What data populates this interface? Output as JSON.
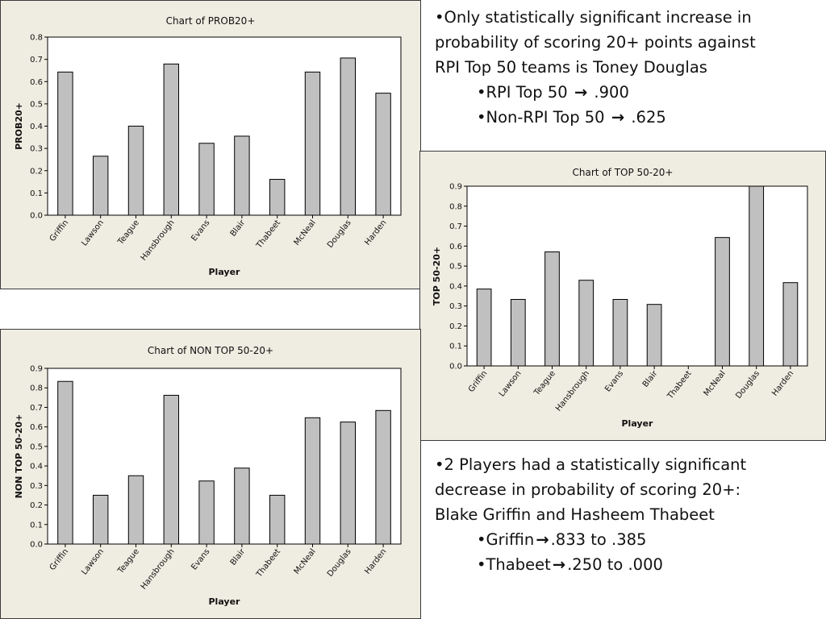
{
  "chart_data": [
    {
      "type": "bar",
      "title": "Chart of PROB20+",
      "xlabel": "Player",
      "ylabel": "PROB20+",
      "ylim": [
        0,
        0.8
      ],
      "yticks": [
        "0.0",
        "0.1",
        "0.2",
        "0.3",
        "0.4",
        "0.5",
        "0.6",
        "0.7",
        "0.8"
      ],
      "categories": [
        "Griffin",
        "Lawson",
        "Teague",
        "Hansbrough",
        "Evans",
        "Blair",
        "Thabeet",
        "McNeal",
        "Douglas",
        "Harden"
      ],
      "values": [
        0.643,
        0.265,
        0.4,
        0.679,
        0.323,
        0.355,
        0.161,
        0.643,
        0.706,
        0.548
      ]
    },
    {
      "type": "bar",
      "title": "Chart of TOP 50-20+",
      "xlabel": "Player",
      "ylabel": "TOP 50-20+",
      "ylim": [
        0,
        0.9
      ],
      "yticks": [
        "0.0",
        "0.1",
        "0.2",
        "0.3",
        "0.4",
        "0.5",
        "0.6",
        "0.7",
        "0.8",
        "0.9"
      ],
      "categories": [
        "Griffin",
        "Lawson",
        "Teague",
        "Hansbrough",
        "Evans",
        "Blair",
        "Thabeet",
        "McNeal",
        "Douglas",
        "Harden"
      ],
      "values": [
        0.385,
        0.333,
        0.571,
        0.429,
        0.333,
        0.308,
        0.0,
        0.643,
        0.9,
        0.417
      ]
    },
    {
      "type": "bar",
      "title": "Chart of NON TOP 50-20+",
      "xlabel": "Player",
      "ylabel": "NON TOP 50-20+",
      "ylim": [
        0,
        0.9
      ],
      "yticks": [
        "0.0",
        "0.1",
        "0.2",
        "0.3",
        "0.4",
        "0.5",
        "0.6",
        "0.7",
        "0.8",
        "0.9"
      ],
      "categories": [
        "Griffin",
        "Lawson",
        "Teague",
        "Hansbrough",
        "Evans",
        "Blair",
        "Thabeet",
        "McNeal",
        "Douglas",
        "Harden"
      ],
      "values": [
        0.833,
        0.25,
        0.35,
        0.762,
        0.323,
        0.389,
        0.25,
        0.647,
        0.625,
        0.684
      ]
    }
  ],
  "notes": {
    "top": {
      "line1": "•Only statistically significant increase in",
      "line2": "probability of scoring 20+ points against",
      "line3": "RPI Top 50 teams is Toney Douglas",
      "sub1_pre": "•RPI Top 50 ",
      "sub1_post": " .900",
      "sub2_pre": "•Non-RPI Top 50 ",
      "sub2_post": " .625"
    },
    "bottom": {
      "line1": "•2 Players had a statistically significant",
      "line2": "decrease in probability of scoring 20+:",
      "line3": "Blake Griffin and Hasheem Thabeet",
      "sub1_pre": "•Griffin",
      "sub1_post": ".833 to .385",
      "sub2_pre": "•Thabeet",
      "sub2_post": ".250 to .000"
    },
    "arrow_glyph": "→"
  }
}
